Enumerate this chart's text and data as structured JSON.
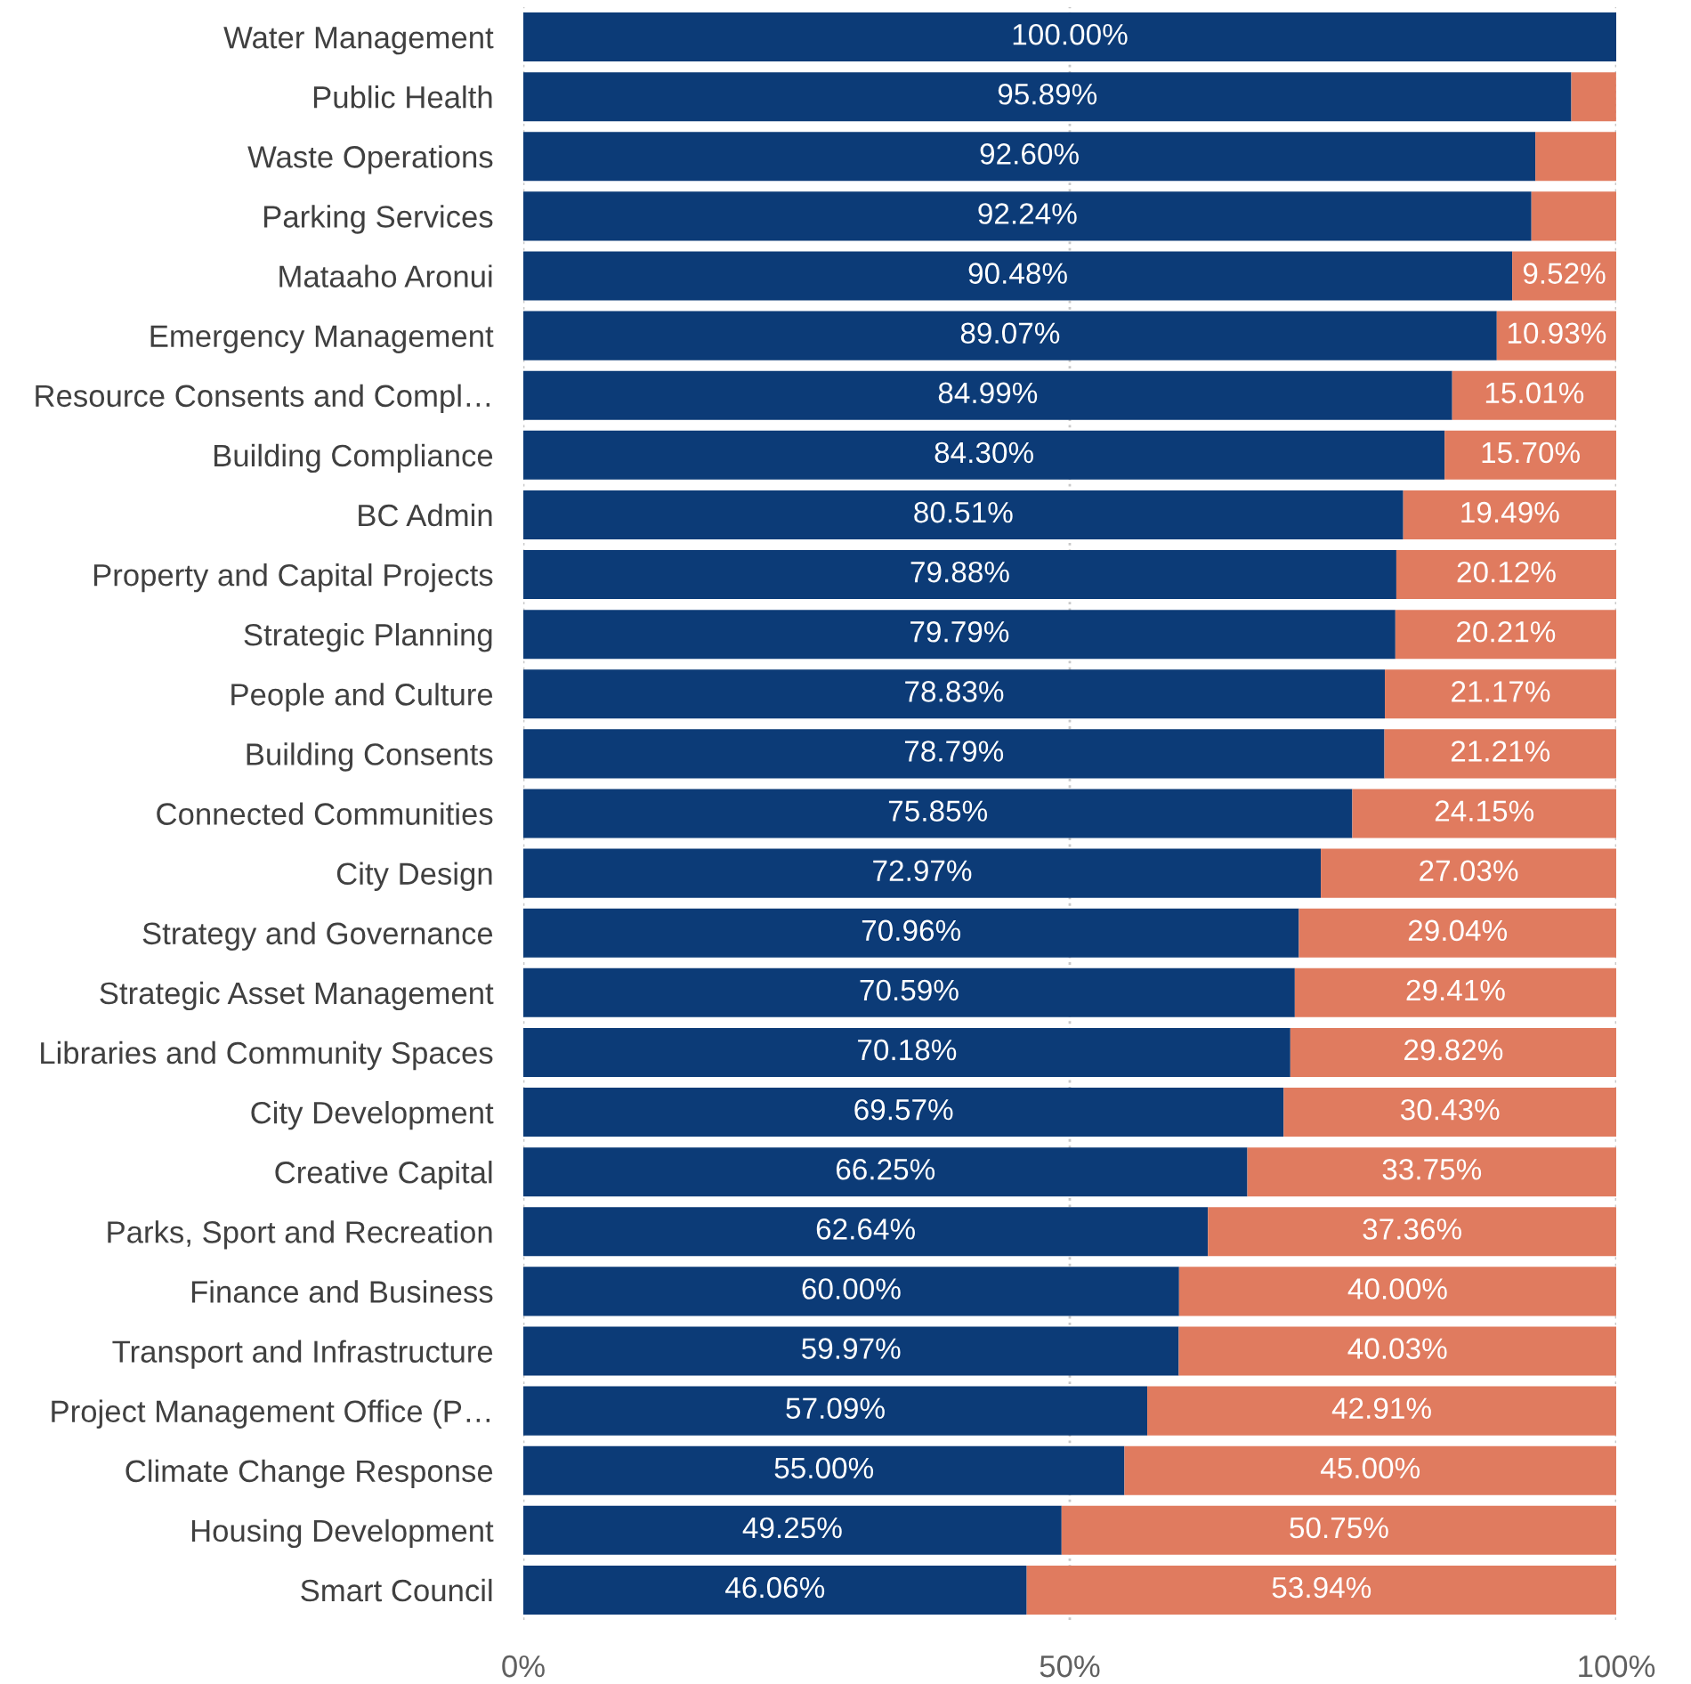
{
  "chart_data": {
    "type": "bar",
    "orientation": "horizontal",
    "stacked": true,
    "categories": [
      "Water Management",
      "Public Health",
      "Waste Operations",
      "Parking Services",
      "Mataaho Aronui",
      "Emergency Management",
      "Resource Consents and Compl…",
      "Building Compliance",
      "BC Admin",
      "Property and Capital Projects",
      "Strategic Planning",
      "People and Culture",
      "Building Consents",
      "Connected Communities",
      "City Design",
      "Strategy and Governance",
      "Strategic Asset Management",
      "Libraries and Community Spaces",
      "City Development",
      "Creative Capital",
      "Parks, Sport and Recreation",
      "Finance and Business",
      "Transport and Infrastructure",
      "Project Management Office (P…",
      "Climate Change Response",
      "Housing Development",
      "Smart Council"
    ],
    "series": [
      {
        "color": "#0c3b77",
        "values": [
          100.0,
          95.89,
          92.6,
          92.24,
          90.48,
          89.07,
          84.99,
          84.3,
          80.51,
          79.88,
          79.79,
          78.83,
          78.79,
          75.85,
          72.97,
          70.96,
          70.59,
          70.18,
          69.57,
          66.25,
          62.64,
          60.0,
          59.97,
          57.09,
          55.0,
          49.25,
          46.06
        ],
        "value_labels": [
          "100.00%",
          "95.89%",
          "92.60%",
          "92.24%",
          "90.48%",
          "89.07%",
          "84.99%",
          "84.30%",
          "80.51%",
          "79.88%",
          "79.79%",
          "78.83%",
          "78.79%",
          "75.85%",
          "72.97%",
          "70.96%",
          "70.59%",
          "70.18%",
          "69.57%",
          "66.25%",
          "62.64%",
          "60.00%",
          "59.97%",
          "57.09%",
          "55.00%",
          "49.25%",
          "46.06%"
        ]
      },
      {
        "color": "#e07b5f",
        "values": [
          0,
          4.1,
          7.4,
          7.8,
          9.52,
          10.93,
          15.01,
          15.7,
          19.49,
          20.12,
          20.21,
          21.17,
          21.21,
          24.15,
          27.03,
          29.04,
          29.41,
          29.82,
          30.43,
          33.75,
          37.36,
          40.0,
          40.03,
          42.91,
          45.0,
          50.75,
          53.94
        ],
        "value_labels": [
          null,
          null,
          null,
          null,
          "9.52%",
          "10.93%",
          "15.01%",
          "15.70%",
          "19.49%",
          "20.12%",
          "20.21%",
          "21.17%",
          "21.21%",
          "24.15%",
          "27.03%",
          "29.04%",
          "29.41%",
          "29.82%",
          "30.43%",
          "33.75%",
          "37.36%",
          "40.00%",
          "40.03%",
          "42.91%",
          "45.00%",
          "50.75%",
          "53.94%"
        ]
      }
    ],
    "xlim": [
      0,
      100
    ],
    "xticks": [
      {
        "value": 0,
        "label": "0%"
      },
      {
        "value": 50,
        "label": "50%"
      },
      {
        "value": 100,
        "label": "100%"
      }
    ],
    "grid": "x"
  }
}
